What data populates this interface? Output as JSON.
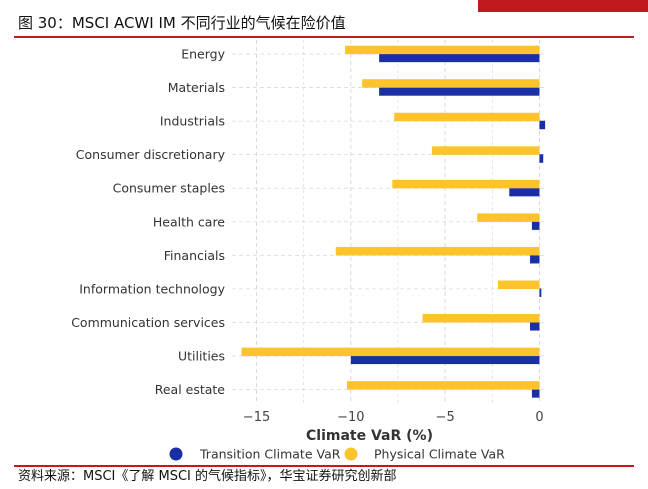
{
  "figure": {
    "title": "图 30：MSCI ACWI IM 不同行业的气候在险价值",
    "source": "资料来源：MSCI《了解 MSCI 的气候指标》，华宝证券研究创新部"
  },
  "colors": {
    "transition": "#1a2fa6",
    "physical": "#fcc42a",
    "accent": "#c0191e",
    "grid": "#d9d9d9"
  },
  "chart_data": {
    "type": "bar",
    "orientation": "horizontal",
    "categories": [
      "Energy",
      "Materials",
      "Industrials",
      "Consumer discretionary",
      "Consumer staples",
      "Health care",
      "Financials",
      "Information technology",
      "Communication services",
      "Utilities",
      "Real estate"
    ],
    "series": [
      {
        "name": "Transition Climate VaR",
        "values": [
          -8.5,
          -8.5,
          0.3,
          0.2,
          -1.6,
          -0.4,
          -0.5,
          0.1,
          -0.5,
          -10.0,
          -0.4
        ]
      },
      {
        "name": "Physical Climate VaR",
        "values": [
          -10.3,
          -9.4,
          -7.7,
          -5.7,
          -7.8,
          -3.3,
          -10.8,
          -2.2,
          -6.2,
          -15.8,
          -10.2
        ]
      }
    ],
    "title": "",
    "xlabel": "Climate VaR (%)",
    "ylabel": "",
    "xlim": [
      -16.3,
      0.4
    ],
    "xticks": [
      -15,
      -10,
      -5,
      0
    ],
    "xtick_labels": [
      "−15",
      "−10",
      "−5",
      "0"
    ],
    "grid": true,
    "legend_position": "bottom"
  }
}
